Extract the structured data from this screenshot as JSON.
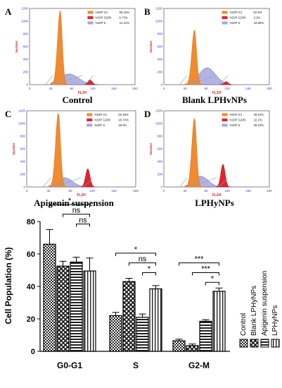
{
  "chart_data": [
    {
      "type": "area",
      "panel": "A",
      "caption": "Control",
      "xlabel": "FL2H",
      "ylabel": "Number",
      "xlim": [
        0,
        200
      ],
      "ylim": [
        0,
        1200
      ],
      "xticks": [
        "0",
        "40",
        "80",
        "120",
        "160",
        "200"
      ],
      "yticks": [
        "0",
        "200",
        "400",
        "600",
        "800",
        "1000",
        "1200"
      ],
      "legend": [
        {
          "label": "%DIP G1",
          "value": "65.15%",
          "color": "#f28a2e"
        },
        {
          "label": "%DIP G2/M",
          "value": "6.73%",
          "color": "#e0262c"
        },
        {
          "label": "%DIP S",
          "value": "31.12%",
          "color": "#a9a6d8"
        }
      ]
    },
    {
      "type": "area",
      "panel": "B",
      "caption": "Blank LPHvNPs",
      "xlabel": "FL2H",
      "ylabel": "Number",
      "xlim": [
        0,
        200
      ],
      "ylim": [
        0,
        1200
      ],
      "xticks": [
        "0",
        "40",
        "80",
        "120",
        "160",
        "200"
      ],
      "yticks": [
        "0",
        "200",
        "400",
        "600",
        "800",
        "1000",
        "1200"
      ],
      "legend": [
        {
          "label": "%DIP G1",
          "value": "52.9%",
          "color": "#f28a2e"
        },
        {
          "label": "%DIP G2/M",
          "value": "3.2%",
          "color": "#e0262c"
        },
        {
          "label": "%DIP S",
          "value": "43.89%",
          "color": "#a9a6d8"
        }
      ]
    },
    {
      "type": "area",
      "panel": "C",
      "caption": "Apigenin suspension",
      "xlabel": "FL2H",
      "ylabel": "Number",
      "xlim": [
        0,
        200
      ],
      "ylim": [
        0,
        1200
      ],
      "xticks": [
        "0",
        "40",
        "80",
        "120",
        "160",
        "200"
      ],
      "yticks": [
        "0",
        "200",
        "400",
        "600",
        "800",
        "1000",
        "1200"
      ],
      "legend": [
        {
          "label": "%DIP G1",
          "value": "55.36%",
          "color": "#f28a2e"
        },
        {
          "label": "%DIP G2/M",
          "value": "18.74%",
          "color": "#e0262c"
        },
        {
          "label": "%DIP S",
          "value": "25.9%",
          "color": "#a9a6d8"
        }
      ]
    },
    {
      "type": "area",
      "panel": "D",
      "caption": "LPHyNPs",
      "xlabel": "FL2H",
      "ylabel": "Number",
      "xlim": [
        0,
        200
      ],
      "ylim": [
        0,
        1200
      ],
      "xticks": [
        "0",
        "40",
        "80",
        "120",
        "160",
        "200"
      ],
      "yticks": [
        "0",
        "200",
        "400",
        "600",
        "800",
        "1000",
        "1200"
      ],
      "legend": [
        {
          "label": "%DIP G1",
          "value": "49.61%",
          "color": "#f28a2e"
        },
        {
          "label": "%DIP G2/M",
          "value": "22.2%",
          "color": "#e0262c"
        },
        {
          "label": "%DIP S",
          "value": "28.19%",
          "color": "#a9a6d8"
        }
      ]
    },
    {
      "type": "bar",
      "categories": [
        "G0-G1",
        "S",
        "G2-M"
      ],
      "ylabel": "Cell Population (%)",
      "ylim": [
        0,
        80
      ],
      "yticks": [
        "0",
        "20",
        "40",
        "60",
        "80"
      ],
      "grid": false,
      "legend_position": "right",
      "series": [
        {
          "name": "Control",
          "values": [
            66,
            22,
            6.5
          ],
          "errors": [
            9,
            2,
            1
          ]
        },
        {
          "name": "Blank LPHyNPs",
          "values": [
            52.5,
            43,
            3.5
          ],
          "errors": [
            3,
            2,
            1
          ]
        },
        {
          "name": "Apigenin suspension",
          "values": [
            55,
            21,
            18.5
          ],
          "errors": [
            3,
            2,
            1
          ]
        },
        {
          "name": "LPHyNPs",
          "values": [
            49.5,
            38.5,
            37
          ],
          "errors": [
            8,
            2,
            2
          ]
        }
      ],
      "significance": [
        {
          "group": "G0-G1",
          "compare": [
            "Control",
            "LPHyNPs"
          ],
          "label": "*"
        },
        {
          "group": "G0-G1",
          "compare": [
            "Blank LPHyNPs",
            "LPHyNPs"
          ],
          "label": "ns"
        },
        {
          "group": "G0-G1",
          "compare": [
            "Apigenin suspension",
            "LPHyNPs"
          ],
          "label": "ns"
        },
        {
          "group": "S",
          "compare": [
            "Control",
            "LPHyNPs"
          ],
          "label": "*"
        },
        {
          "group": "S",
          "compare": [
            "Blank LPHyNPs",
            "LPHyNPs"
          ],
          "label": "ns"
        },
        {
          "group": "S",
          "compare": [
            "Apigenin suspension",
            "LPHyNPs"
          ],
          "label": "*"
        },
        {
          "group": "G2-M",
          "compare": [
            "Control",
            "LPHyNPs"
          ],
          "label": "***"
        },
        {
          "group": "G2-M",
          "compare": [
            "Blank LPHyNPs",
            "LPHyNPs"
          ],
          "label": "***"
        },
        {
          "group": "G2-M",
          "compare": [
            "Apigenin suspension",
            "LPHyNPs"
          ],
          "label": "*"
        }
      ]
    }
  ]
}
